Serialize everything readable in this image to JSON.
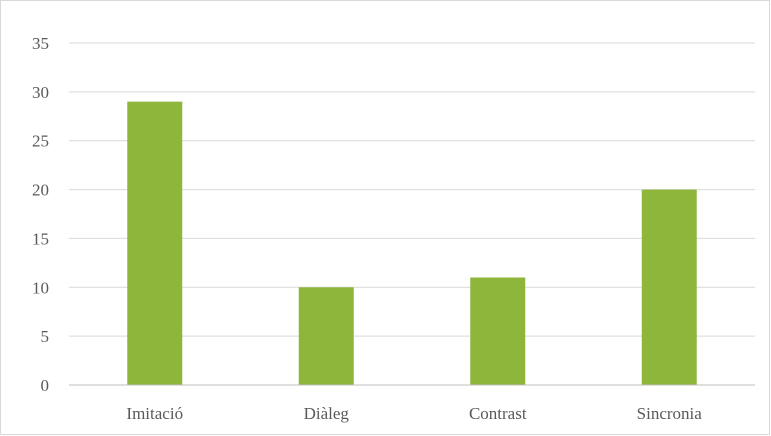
{
  "chart_data": {
    "type": "bar",
    "categories": [
      "Imitació",
      "Diàleg",
      "Contrast",
      "Sincronia"
    ],
    "values": [
      29,
      10,
      11,
      20
    ],
    "ylim": [
      0,
      35
    ],
    "yticks": [
      0,
      5,
      10,
      15,
      20,
      25,
      30,
      35
    ],
    "title": "",
    "xlabel": "",
    "ylabel": "",
    "grid": true,
    "legend": "none",
    "bar_color": "#8db63b"
  }
}
